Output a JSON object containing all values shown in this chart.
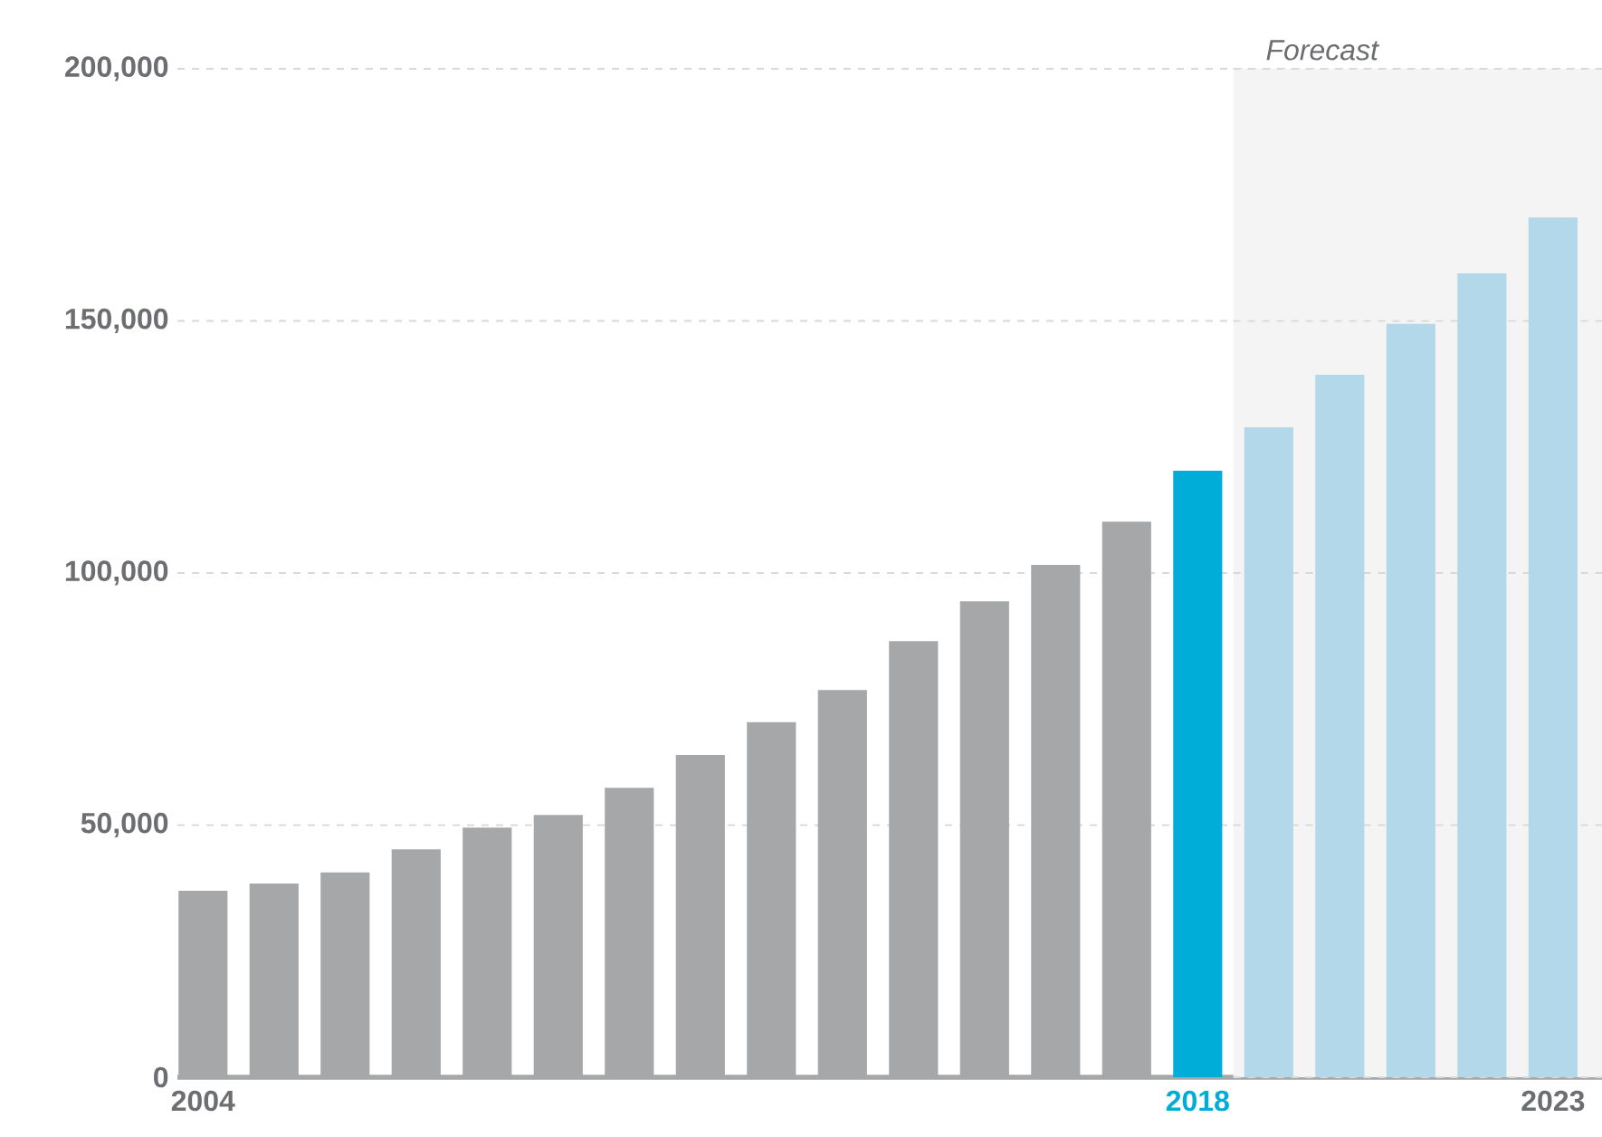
{
  "chart_data": {
    "type": "bar",
    "categories": [
      "2004",
      null,
      null,
      null,
      null,
      null,
      null,
      null,
      null,
      null,
      null,
      null,
      null,
      null,
      "2018",
      null,
      null,
      null,
      null,
      "2023"
    ],
    "values": [
      37000,
      38400,
      40600,
      45200,
      49500,
      52000,
      57400,
      63900,
      70400,
      76800,
      86500,
      94400,
      101600,
      110200,
      120300,
      128900,
      139300,
      149400,
      159400,
      170500
    ],
    "colors": [
      "#a6a7a9",
      "#a6a7a9",
      "#a6a7a9",
      "#a6a7a9",
      "#a6a7a9",
      "#a6a7a9",
      "#a6a7a9",
      "#a6a7a9",
      "#a6a7a9",
      "#a6a7a9",
      "#a6a7a9",
      "#a6a7a9",
      "#a6a7a9",
      "#a6a7a9",
      "#00acd8",
      "#b3d8ea",
      "#b3d8ea",
      "#b3d8ea",
      "#b3d8ea",
      "#b3d8ea"
    ],
    "ylim": [
      0,
      200000
    ],
    "yticks": [
      {
        "value": 0,
        "label": "0"
      },
      {
        "value": 50000,
        "label": "50,000"
      },
      {
        "value": 100000,
        "label": "100,000"
      },
      {
        "value": 150000,
        "label": "150,000"
      },
      {
        "value": 200000,
        "label": "200,000"
      }
    ],
    "grid": "y",
    "bands": [
      {
        "axis": "x",
        "from": "2018",
        "to": "2023",
        "label": "Forecast",
        "color": "#f4f4f4"
      }
    ]
  }
}
